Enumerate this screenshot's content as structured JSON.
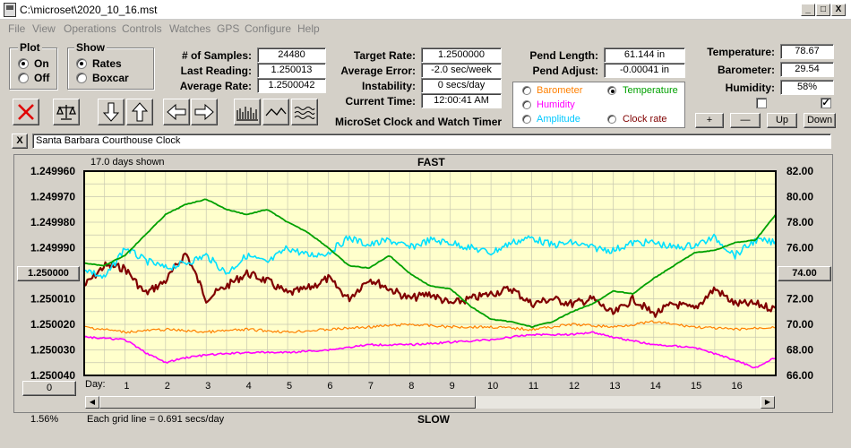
{
  "window": {
    "title": "C:\\microset\\2020_10_16.mst",
    "min": "_",
    "max": "□",
    "close": "X"
  },
  "menu": [
    "File",
    "View",
    "Operations",
    "Controls",
    "Watches",
    "GPS",
    "Configure",
    "Help"
  ],
  "plot_group": {
    "title": "Plot",
    "options": [
      "On",
      "Off"
    ],
    "selected": "On"
  },
  "show_group": {
    "title": "Show",
    "options": [
      "Rates",
      "Boxcar"
    ],
    "selected": "Rates"
  },
  "stats": {
    "samples_label": "# of Samples:",
    "samples": "24480",
    "last_label": "Last Reading:",
    "last": "1.250013",
    "avg_label": "Average Rate:",
    "avg": "1.2500042"
  },
  "targets": {
    "target_label": "Target Rate:",
    "target": "1.2500000",
    "error_label": "Average Error:",
    "error": "-2.0 sec/week",
    "instab_label": "Instability:",
    "instab": "0 secs/day",
    "time_label": "Current Time:",
    "time": "12:00:41 AM",
    "subtitle": "MicroSet Clock and Watch Timer"
  },
  "pend": {
    "length_label": "Pend Length:",
    "length": "61.144 in",
    "adjust_label": "Pend Adjust:",
    "adjust": "-0.00041 in"
  },
  "env": {
    "temp_label": "Temperature:",
    "temp": "78.67",
    "baro_label": "Barometer:",
    "baro": "29.54",
    "hum_label": "Humidity:",
    "hum": "58%"
  },
  "legend": [
    {
      "label": "Barometer",
      "color": "#ff8000",
      "selected": false
    },
    {
      "label": "Temperature",
      "color": "#00a000",
      "selected": true
    },
    {
      "label": "Humidity",
      "color": "#ff00ff",
      "selected": false
    },
    {
      "label": "Amplitude",
      "color": "#00c8ff",
      "selected": false
    },
    {
      "label": "Clock rate",
      "color": "#800000",
      "selected": false
    }
  ],
  "env_buttons": {
    "plus": "+",
    "minus": "—",
    "up": "Up",
    "down": "Down"
  },
  "checkboxes": {
    "left": "",
    "right": "✓"
  },
  "clock_name": "Santa Barbara Courthouse Clock",
  "clear_btn": "X",
  "chart_header": {
    "days_shown": "17.0 days shown",
    "top": "FAST",
    "bottom": "SLOW",
    "grid_note": "Each grid line = 0.691 secs/day",
    "percent": "1.56%",
    "day_label": "Day:",
    "left_btn": "1.250000",
    "right_btn": "74.00",
    "zero_btn": "0"
  },
  "chart_data": {
    "type": "line",
    "x_label": "Day",
    "x_ticks": [
      "1",
      "2",
      "3",
      "4",
      "5",
      "6",
      "7",
      "8",
      "9",
      "10",
      "11",
      "12",
      "13",
      "14",
      "15",
      "16"
    ],
    "xlim": [
      0,
      17
    ],
    "y_left_ticks": [
      "1.249960",
      "1.249970",
      "1.249980",
      "1.249990",
      "1.250000",
      "1.250010",
      "1.250020",
      "1.250030",
      "1.250040"
    ],
    "y_left_lim": [
      1.24996,
      1.25004
    ],
    "y_right_ticks": [
      "82.00",
      "80.00",
      "78.00",
      "76.00",
      "74.00",
      "72.00",
      "70.00",
      "68.00",
      "66.00"
    ],
    "y_right_lim": [
      66,
      82
    ],
    "series": [
      {
        "name": "Clock rate",
        "color": "#800000",
        "width": 2.2,
        "axis": "left",
        "values": [
          [
            0,
            1.250005
          ],
          [
            0.5,
            1.249997
          ],
          [
            1,
            1.249998
          ],
          [
            1.5,
            1.250008
          ],
          [
            2,
            1.250003
          ],
          [
            2.5,
            1.249992
          ],
          [
            3,
            1.25001
          ],
          [
            3.5,
            1.250005
          ],
          [
            4,
            1.25
          ],
          [
            4.5,
            1.250003
          ],
          [
            5,
            1.250008
          ],
          [
            5.5,
            1.250006
          ],
          [
            6,
            1.250002
          ],
          [
            6.5,
            1.25001
          ],
          [
            7,
            1.250002
          ],
          [
            7.5,
            1.250006
          ],
          [
            8,
            1.25001
          ],
          [
            8.5,
            1.250008
          ],
          [
            9,
            1.250012
          ],
          [
            9.5,
            1.25001
          ],
          [
            10,
            1.250008
          ],
          [
            10.5,
            1.250006
          ],
          [
            11,
            1.250012
          ],
          [
            11.5,
            1.25001
          ],
          [
            12,
            1.250012
          ],
          [
            12.5,
            1.25001
          ],
          [
            13,
            1.250016
          ],
          [
            13.5,
            1.25001
          ],
          [
            14,
            1.250016
          ],
          [
            14.5,
            1.250012
          ],
          [
            15,
            1.250014
          ],
          [
            15.5,
            1.250006
          ],
          [
            16,
            1.250012
          ],
          [
            16.5,
            1.250012
          ],
          [
            17,
            1.250014
          ]
        ]
      },
      {
        "name": "Amplitude",
        "color": "#00e0ff",
        "width": 1.6,
        "axis": "left",
        "values": [
          [
            0,
            1.249998
          ],
          [
            0.5,
            1.250002
          ],
          [
            1,
            1.24999
          ],
          [
            1.5,
            1.249995
          ],
          [
            2,
            1.249998
          ],
          [
            2.5,
            1.249996
          ],
          [
            3,
            1.249993
          ],
          [
            3.5,
            1.25
          ],
          [
            4,
            1.249993
          ],
          [
            4.5,
            1.249996
          ],
          [
            5,
            1.24999
          ],
          [
            5.5,
            1.249993
          ],
          [
            6,
            1.249992
          ],
          [
            6.5,
            1.249986
          ],
          [
            7,
            1.249989
          ],
          [
            7.5,
            1.249987
          ],
          [
            8,
            1.24999
          ],
          [
            8.5,
            1.249987
          ],
          [
            9,
            1.249988
          ],
          [
            9.5,
            1.24999
          ],
          [
            10,
            1.249992
          ],
          [
            10.5,
            1.249988
          ],
          [
            11,
            1.249986
          ],
          [
            11.5,
            1.249989
          ],
          [
            12,
            1.249988
          ],
          [
            12.5,
            1.24999
          ],
          [
            13,
            1.249991
          ],
          [
            13.5,
            1.249988
          ],
          [
            14,
            1.249988
          ],
          [
            14.5,
            1.24999
          ],
          [
            15,
            1.249989
          ],
          [
            15.5,
            1.249986
          ],
          [
            16,
            1.249993
          ],
          [
            16.5,
            1.249987
          ],
          [
            17,
            1.249988
          ]
        ]
      },
      {
        "name": "Temperature",
        "color": "#00a000",
        "width": 1.8,
        "axis": "right",
        "values": [
          [
            0,
            74.8
          ],
          [
            0.5,
            74.6
          ],
          [
            1,
            75.4
          ],
          [
            1.5,
            77.0
          ],
          [
            2,
            78.6
          ],
          [
            2.5,
            79.4
          ],
          [
            3,
            79.8
          ],
          [
            3.5,
            79.0
          ],
          [
            4,
            78.6
          ],
          [
            4.5,
            79.0
          ],
          [
            5,
            78.0
          ],
          [
            5.5,
            77.2
          ],
          [
            6,
            76.0
          ],
          [
            6.5,
            74.6
          ],
          [
            7,
            74.4
          ],
          [
            7.5,
            75.4
          ],
          [
            8,
            74.0
          ],
          [
            8.5,
            73.0
          ],
          [
            9,
            72.8
          ],
          [
            9.5,
            71.4
          ],
          [
            10,
            70.4
          ],
          [
            10.5,
            70.2
          ],
          [
            11,
            69.8
          ],
          [
            11.5,
            70.2
          ],
          [
            12,
            71.0
          ],
          [
            12.5,
            71.6
          ],
          [
            13,
            72.6
          ],
          [
            13.5,
            72.4
          ],
          [
            14,
            73.6
          ],
          [
            14.5,
            74.6
          ],
          [
            15,
            75.6
          ],
          [
            15.5,
            75.8
          ],
          [
            16,
            76.4
          ],
          [
            16.5,
            76.6
          ],
          [
            17,
            78.6
          ]
        ]
      },
      {
        "name": "Barometer",
        "color": "#ff8000",
        "width": 1.2,
        "axis": "left",
        "values": [
          [
            0,
            1.250021
          ],
          [
            1,
            1.250023
          ],
          [
            2,
            1.250022
          ],
          [
            3,
            1.250023
          ],
          [
            4,
            1.250022
          ],
          [
            5,
            1.250023
          ],
          [
            6,
            1.250022
          ],
          [
            7,
            1.250021
          ],
          [
            8,
            1.25002
          ],
          [
            9,
            1.250021
          ],
          [
            10,
            1.250021
          ],
          [
            11,
            1.250022
          ],
          [
            12,
            1.25002
          ],
          [
            13,
            1.250021
          ],
          [
            14,
            1.250019
          ],
          [
            15,
            1.250021
          ],
          [
            16,
            1.250022
          ],
          [
            17,
            1.250021
          ]
        ]
      },
      {
        "name": "Humidity",
        "color": "#ff00ff",
        "width": 1.6,
        "axis": "left",
        "values": [
          [
            0,
            1.250025
          ],
          [
            1,
            1.250026
          ],
          [
            1.5,
            1.250031
          ],
          [
            2,
            1.250035
          ],
          [
            2.5,
            1.250033
          ],
          [
            3,
            1.250032
          ],
          [
            4,
            1.250031
          ],
          [
            5,
            1.250031
          ],
          [
            6,
            1.25003
          ],
          [
            7,
            1.250028
          ],
          [
            8,
            1.250028
          ],
          [
            9,
            1.250027
          ],
          [
            10,
            1.250026
          ],
          [
            11,
            1.250024
          ],
          [
            12,
            1.250024
          ],
          [
            12.5,
            1.250023
          ],
          [
            13,
            1.250025
          ],
          [
            14,
            1.250028
          ],
          [
            15,
            1.250029
          ],
          [
            16,
            1.250034
          ],
          [
            16.5,
            1.250037
          ],
          [
            17,
            1.250033
          ]
        ]
      }
    ]
  }
}
